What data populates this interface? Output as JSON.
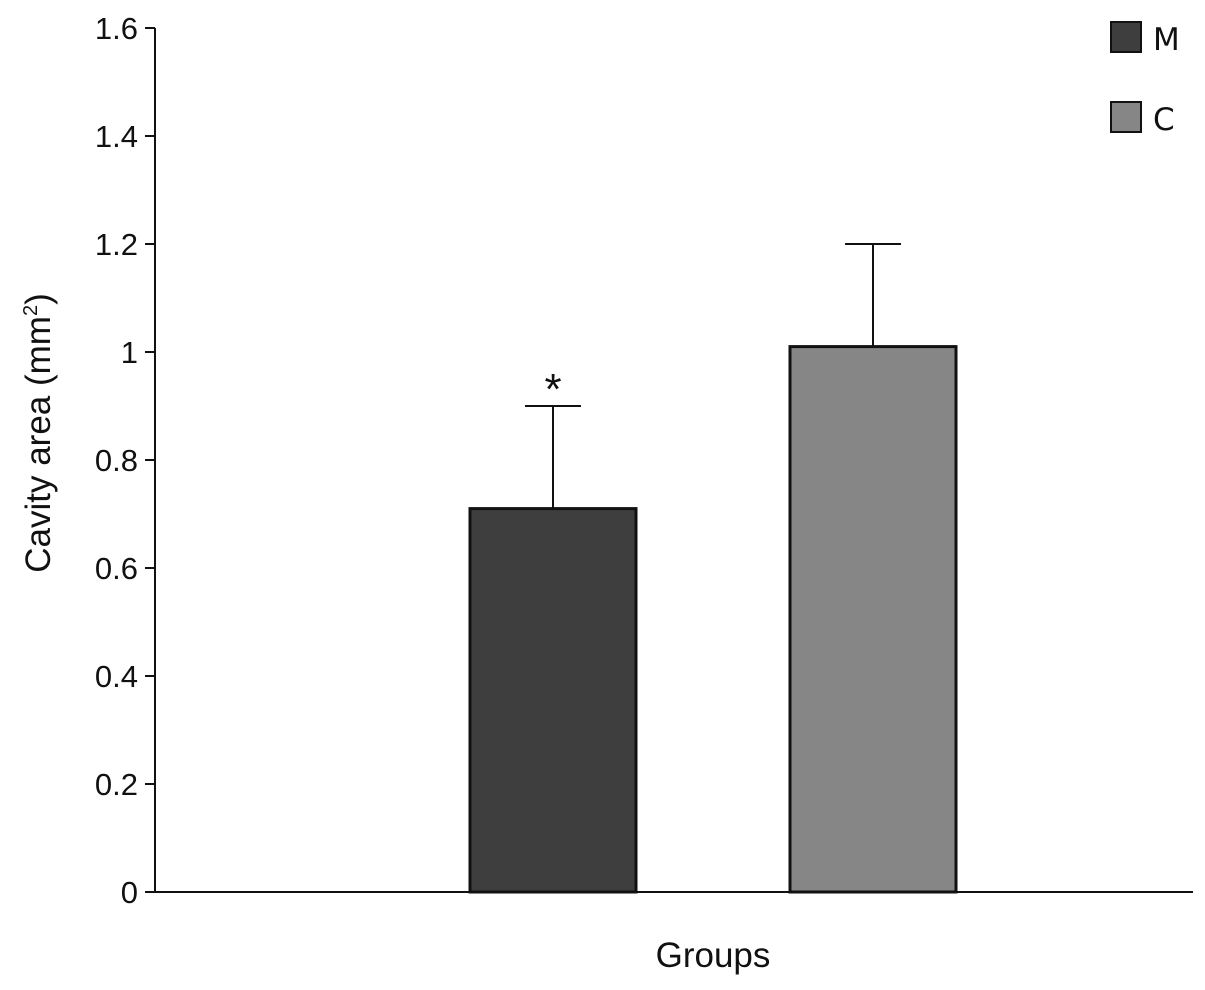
{
  "chart_data": {
    "type": "bar",
    "categories": [
      "M",
      "C"
    ],
    "values": [
      0.71,
      1.01
    ],
    "errors": [
      0.19,
      0.19
    ],
    "colors": [
      "#3e3e3e",
      "#868686"
    ],
    "significance": [
      "*",
      ""
    ],
    "xlabel": "Groups",
    "ylabel_main": "Cavity area (mm",
    "ylabel_sup": "2",
    "ylabel_end": ")",
    "ylim": [
      0,
      1.6
    ],
    "yticks": [
      0,
      0.2,
      0.4,
      0.6,
      0.8,
      1,
      1.2,
      1.4,
      1.6
    ],
    "ytick_labels": [
      "0",
      "0.2",
      "0.4",
      "0.6",
      "0.8",
      "1",
      "1.2",
      "1.4",
      "1.6"
    ],
    "legend": [
      {
        "label": "M",
        "color": "#3e3e3e"
      },
      {
        "label": "C",
        "color": "#868686"
      }
    ],
    "legend_position": "top-right",
    "grid": false
  }
}
